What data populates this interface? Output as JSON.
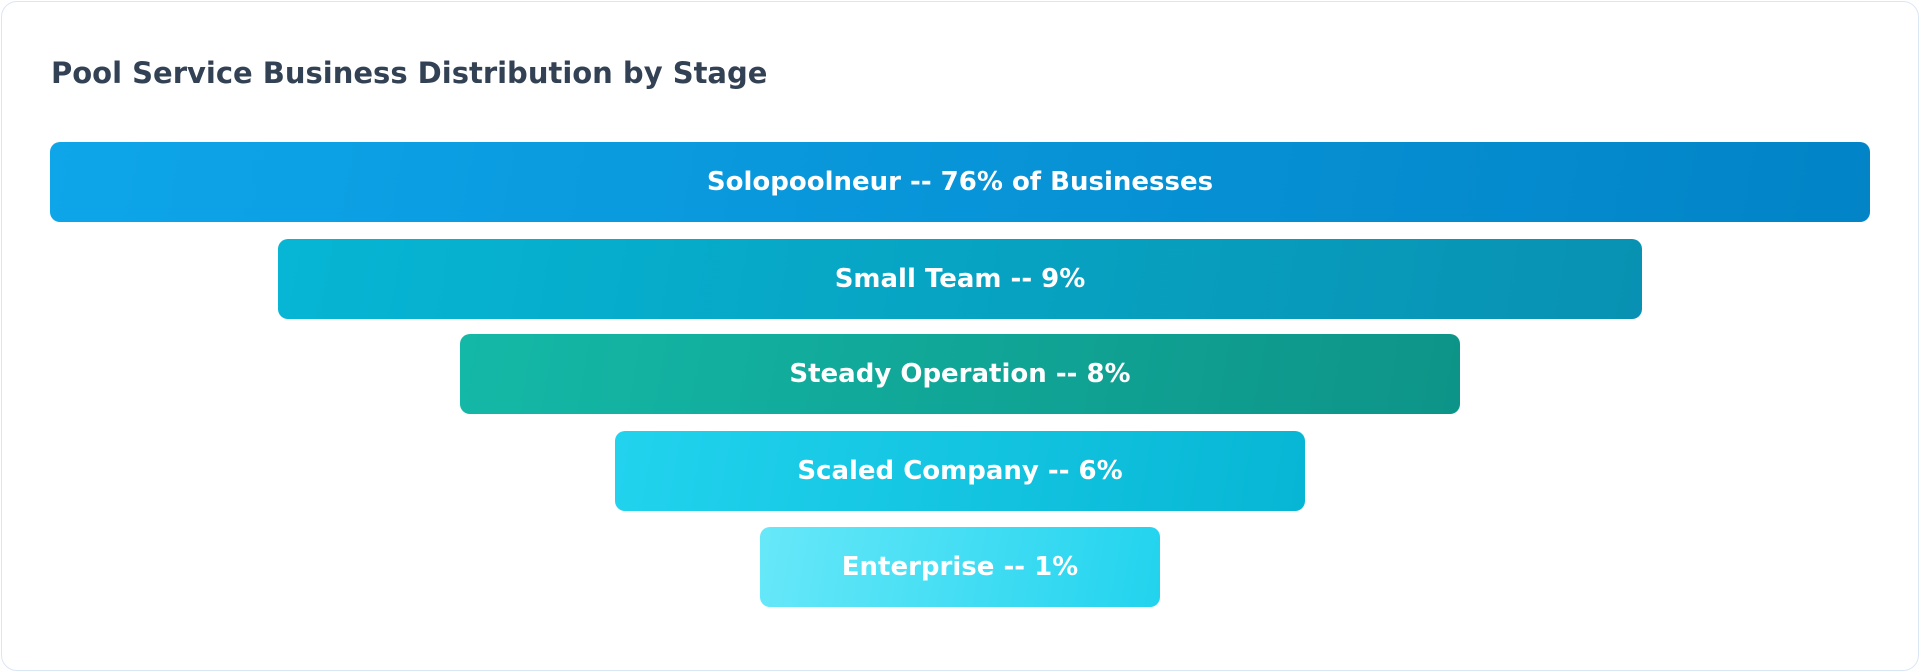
{
  "chart_data": {
    "type": "funnel",
    "title": "Pool Service Business Distribution by Stage",
    "categories": [
      "Solopoolneur",
      "Small Team",
      "Steady Operation",
      "Scaled Company",
      "Enterprise"
    ],
    "values": [
      76,
      9,
      8,
      6,
      1
    ],
    "unit": "%",
    "labels": [
      "Solopoolneur -- 76% of Businesses",
      "Small Team -- 9%",
      "Steady Operation -- 8%",
      "Scaled Company -- 6%",
      "Enterprise -- 1%"
    ],
    "colors": [
      [
        "#0ea5e9",
        "#0284c7"
      ],
      [
        "#06b6d4",
        "#0891b2"
      ],
      [
        "#14b8a6",
        "#0d9488"
      ],
      [
        "#22d3ee",
        "#06b6d4"
      ],
      [
        "#67e8f9",
        "#22d3ee"
      ]
    ]
  }
}
